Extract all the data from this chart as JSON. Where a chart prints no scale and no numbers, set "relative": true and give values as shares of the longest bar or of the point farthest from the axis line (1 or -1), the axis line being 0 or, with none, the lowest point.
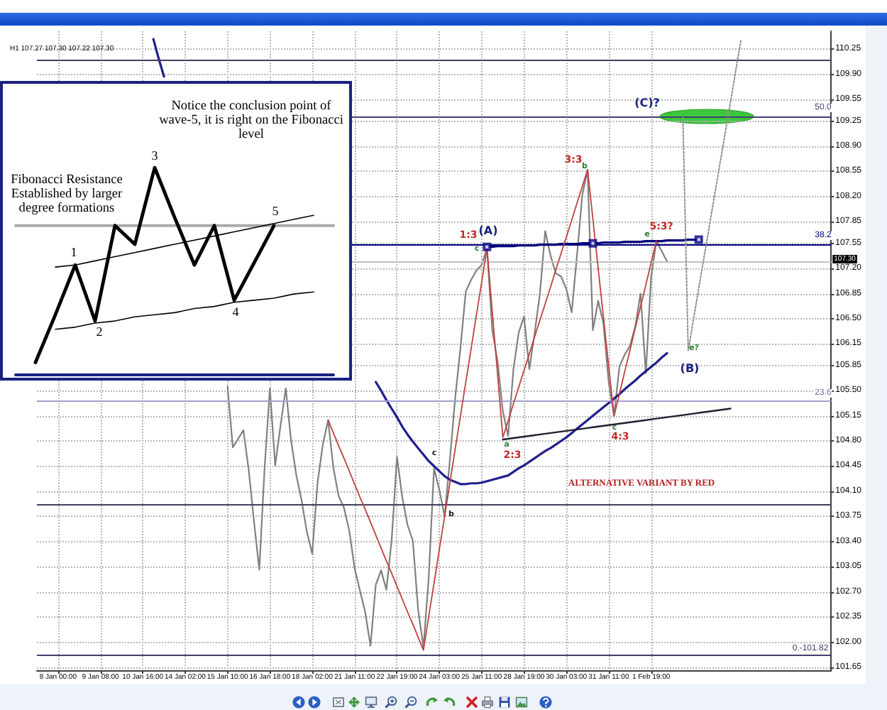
{
  "chart_data": [
    {
      "type": "line",
      "title": "H1 107.27 107.30 107.22 107.30",
      "categories": [
        null,
        null,
        null,
        null,
        "8 Jan 00:00",
        null,
        null,
        null,
        null,
        null,
        null,
        null,
        "9 Jan 08:00",
        null,
        null,
        null,
        null,
        null,
        null,
        null,
        "10 Jan 16:00",
        null,
        null,
        null,
        null,
        null,
        null,
        null,
        "14 Jan 02:00",
        null,
        null,
        null,
        null,
        null,
        null,
        null,
        "15 Jan 10:00",
        null,
        null,
        null,
        null,
        null,
        null,
        null,
        "16 Jan 18:00",
        null,
        null,
        null,
        null,
        null,
        null,
        null,
        "18 Jan 02:00",
        null,
        null,
        null,
        null,
        null,
        null,
        null,
        "21 Jan 11:00",
        null,
        null,
        null,
        null,
        null,
        null,
        null,
        "22 Jan 19:00",
        null,
        null,
        null,
        null,
        null,
        null,
        null,
        "24 Jan 03:00",
        null,
        null,
        null,
        null,
        null,
        null,
        null,
        "25 Jan 11:00",
        null,
        null,
        null,
        null,
        null,
        null,
        null,
        "28 Jan 19:00",
        null,
        null,
        null,
        null,
        null,
        null,
        null,
        "30 Jan 03:00",
        null,
        null,
        null,
        null,
        null,
        null,
        null,
        "31 Jan 11:00",
        null,
        null,
        null,
        null,
        null,
        null,
        null,
        "1 Feb 19:00",
        null,
        null,
        null,
        null,
        null,
        null,
        null,
        null,
        null,
        null,
        null,
        null,
        null,
        null,
        null,
        null,
        null,
        null,
        null,
        null,
        null,
        null,
        null,
        null,
        null,
        null,
        null,
        null,
        null,
        null,
        null,
        null,
        null,
        null
      ],
      "ylim": [
        101.6,
        110.5
      ],
      "yticks": [
        110.25,
        {
          "value": 109.9,
          "label": "109.90"
        },
        109.55,
        109.25,
        {
          "value": 108.9,
          "label": "108.90"
        },
        108.55,
        {
          "value": 108.2,
          "label": "108.20"
        },
        107.85,
        107.55,
        {
          "value": 107.2,
          "label": "107.20"
        },
        106.85,
        {
          "value": 106.5,
          "label": "106.50"
        },
        106.15,
        105.85,
        {
          "value": 105.5,
          "label": "105.50"
        },
        105.15,
        {
          "value": 104.8,
          "label": "104.80"
        },
        104.45,
        {
          "value": 104.1,
          "label": "104.10"
        },
        103.75,
        {
          "value": 103.4,
          "label": "103.40"
        },
        103.05,
        {
          "value": 102.7,
          "label": "102.70"
        },
        102.35,
        {
          "value": 102.0,
          "label": "102.00"
        },
        101.65
      ],
      "grid": true,
      "marker": "none",
      "series": [
        {
          "color": "#808080",
          "values": [
            null,
            null,
            null,
            null,
            null,
            null,
            null,
            null,
            null,
            null,
            null,
            null,
            null,
            null,
            null,
            null,
            null,
            null,
            null,
            null,
            null,
            null,
            null,
            null,
            null,
            null,
            null,
            null,
            null,
            null,
            null,
            null,
            null,
            null,
            null,
            null,
            105.56,
            104.71,
            104.83,
            104.95,
            104.4,
            103.68,
            103.01,
            104.42,
            105.53,
            104.46,
            105.01,
            105.53,
            104.81,
            104.32,
            103.97,
            103.53,
            103.23,
            104.22,
            104.75,
            105.09,
            104.42,
            104.03,
            103.87,
            103.55,
            103.03,
            102.72,
            102.42,
            101.95,
            102.8,
            103.0,
            102.73,
            103.42,
            104.58,
            104.02,
            103.63,
            103.41,
            102.45,
            101.93,
            102.9,
            104.42,
            104.12,
            103.75,
            104.54,
            105.4,
            106.1,
            106.88,
            107.04,
            107.17,
            107.25,
            107.48,
            106.34,
            105.91,
            105.21,
            104.87,
            105.8,
            106.31,
            106.53,
            105.8,
            106.3,
            106.85,
            107.72,
            107.38,
            107.13,
            107.09,
            106.91,
            106.59,
            107.38,
            108.22,
            108.57,
            106.34,
            106.75,
            106.43,
            105.61,
            105.15,
            105.83,
            106.0,
            106.12,
            106.39,
            106.85,
            105.74,
            107.09,
            107.58,
            107.44,
            107.3,
            null,
            null,
            null,
            null,
            null,
            null,
            null,
            null,
            null,
            null,
            null,
            null,
            null,
            null,
            null,
            null,
            null,
            null,
            null,
            null,
            null,
            null,
            null,
            null,
            null,
            null,
            null,
            null,
            null,
            null,
            null
          ]
        },
        {
          "color": "#1f1f8f",
          "values": [
            null,
            null,
            null,
            null,
            null,
            null,
            null,
            null,
            null,
            null,
            null,
            null,
            null,
            null,
            null,
            null,
            null,
            null,
            null,
            null,
            null,
            null,
            110.39,
            110.12,
            109.87,
            null,
            null,
            null,
            null,
            null,
            null,
            null,
            null,
            null,
            null,
            null,
            null,
            null,
            null,
            null,
            null,
            null,
            null,
            null,
            null,
            null,
            null,
            null,
            null,
            null,
            null,
            null,
            null,
            null,
            null,
            null,
            null,
            null,
            null,
            null,
            null,
            null,
            null,
            null,
            105.62,
            105.5,
            105.37,
            105.25,
            105.13,
            105.0,
            104.89,
            104.79,
            104.7,
            104.61,
            104.52,
            104.45,
            104.38,
            104.31,
            104.26,
            104.23,
            104.2,
            104.2,
            104.21,
            104.21,
            104.22,
            104.24,
            104.26,
            104.28,
            104.3,
            104.32,
            104.37,
            104.42,
            104.46,
            104.51,
            104.56,
            104.61,
            104.66,
            104.7,
            104.75,
            104.8,
            104.85,
            104.91,
            104.97,
            105.03,
            105.09,
            105.15,
            105.21,
            105.27,
            105.33,
            105.39,
            105.45,
            105.52,
            105.58,
            105.64,
            105.71,
            105.77,
            105.83,
            105.89,
            105.96,
            106.02,
            null,
            null,
            null,
            null,
            null,
            null,
            null,
            null,
            null,
            null,
            null,
            null,
            null,
            null,
            null,
            null,
            null,
            null,
            null,
            null,
            null,
            null,
            null,
            null,
            null,
            null,
            null,
            null,
            null,
            null,
            null
          ]
        },
        {
          "color": "#202030",
          "values": [
            null,
            null,
            null,
            null,
            null,
            null,
            null,
            null,
            null,
            null,
            null,
            null,
            null,
            null,
            null,
            null,
            null,
            null,
            null,
            null,
            null,
            null,
            null,
            null,
            null,
            null,
            null,
            null,
            null,
            null,
            null,
            null,
            null,
            null,
            null,
            null,
            null,
            null,
            null,
            null,
            null,
            null,
            null,
            null,
            null,
            null,
            null,
            null,
            null,
            null,
            null,
            null,
            null,
            null,
            null,
            null,
            null,
            null,
            null,
            null,
            null,
            null,
            null,
            null,
            null,
            null,
            null,
            null,
            null,
            null,
            null,
            null,
            null,
            null,
            null,
            null,
            null,
            null,
            null,
            null,
            null,
            null,
            null,
            null,
            null,
            null,
            null,
            null,
            104.82,
            104.83,
            104.84,
            104.85,
            104.86,
            104.87,
            104.88,
            104.89,
            104.9,
            104.91,
            104.92,
            104.93,
            104.94,
            104.95,
            104.96,
            104.97,
            104.98,
            104.99,
            105.0,
            105.01,
            105.02,
            105.03,
            105.04,
            105.05,
            105.06,
            105.07,
            105.08,
            105.09,
            105.1,
            105.11,
            105.12,
            105.13,
            105.14,
            105.15,
            105.16,
            105.17,
            105.18,
            105.19,
            105.2,
            105.21,
            105.22,
            105.23,
            105.24,
            105.25,
            null,
            null,
            null,
            null,
            null,
            null,
            null,
            null,
            null,
            null,
            null,
            null,
            null,
            null,
            null,
            null,
            null,
            null,
            null
          ]
        },
        {
          "color": "#000080",
          "values": [
            null,
            null,
            null,
            null,
            null,
            null,
            null,
            null,
            null,
            null,
            null,
            null,
            null,
            null,
            null,
            null,
            null,
            null,
            null,
            null,
            null,
            null,
            null,
            null,
            null,
            null,
            null,
            null,
            null,
            null,
            null,
            null,
            null,
            null,
            null,
            null,
            null,
            null,
            null,
            null,
            null,
            null,
            null,
            null,
            null,
            null,
            null,
            null,
            null,
            null,
            null,
            null,
            null,
            null,
            null,
            null,
            null,
            null,
            null,
            null,
            null,
            null,
            null,
            null,
            null,
            null,
            null,
            null,
            null,
            null,
            null,
            null,
            null,
            null,
            null,
            null,
            null,
            null,
            null,
            null,
            null,
            null,
            null,
            null,
            null,
            107.5,
            107.5,
            107.51,
            107.51,
            107.51,
            107.51,
            107.52,
            107.52,
            107.52,
            107.52,
            107.53,
            107.53,
            107.53,
            107.53,
            107.54,
            107.54,
            107.54,
            107.54,
            107.55,
            107.55,
            107.55,
            107.55,
            107.56,
            107.56,
            107.56,
            107.56,
            107.57,
            107.57,
            107.57,
            107.57,
            107.58,
            107.58,
            107.58,
            107.58,
            107.59,
            107.59,
            107.59,
            107.59,
            107.6,
            107.6,
            107.6,
            null,
            null,
            null,
            null,
            null,
            null,
            null,
            null,
            null,
            null,
            null,
            null,
            null,
            null,
            null,
            null,
            null,
            null,
            null,
            null,
            null,
            null,
            null,
            null,
            null
          ]
        },
        {
          "color": "#c04040",
          "values": [
            null,
            null,
            null,
            null,
            null,
            null,
            null,
            null,
            null,
            null,
            null,
            null,
            null,
            null,
            null,
            null,
            null,
            null,
            null,
            null,
            null,
            null,
            null,
            null,
            null,
            null,
            null,
            null,
            null,
            null,
            null,
            null,
            null,
            null,
            null,
            null,
            null,
            null,
            null,
            null,
            null,
            null,
            null,
            null,
            null,
            null,
            null,
            null,
            null,
            null,
            null,
            null,
            null,
            null,
            null,
            105.09,
            104.91,
            104.73,
            104.56,
            104.38,
            104.2,
            104.02,
            103.85,
            103.67,
            103.49,
            103.31,
            103.13,
            102.96,
            102.78,
            102.6,
            102.42,
            102.25,
            102.07,
            101.89,
            102.36,
            102.82,
            103.29,
            103.75,
            104.22,
            104.69,
            105.15,
            105.62,
            106.08,
            106.55,
            107.01,
            107.48,
            106.6,
            105.73,
            104.85,
            105.08,
            105.32,
            105.55,
            105.78,
            106.01,
            106.25,
            106.48,
            106.71,
            106.94,
            107.18,
            107.41,
            107.64,
            107.87,
            108.11,
            108.34,
            108.57,
            107.89,
            107.2,
            106.52,
            105.83,
            105.15,
            105.45,
            105.76,
            106.06,
            106.37,
            106.67,
            106.97,
            107.28,
            107.58,
            null,
            null,
            null,
            null,
            null,
            null,
            null,
            null,
            null,
            null,
            null,
            null,
            null,
            null,
            null,
            null,
            null,
            null,
            null,
            null,
            null,
            null,
            null,
            null,
            null,
            null,
            null,
            null,
            null,
            null,
            null,
            null,
            null
          ]
        },
        {
          "color": "#909090",
          "line_style": "dotted",
          "values": [
            null,
            null,
            null,
            null,
            null,
            null,
            null,
            null,
            null,
            null,
            null,
            null,
            null,
            null,
            null,
            null,
            null,
            null,
            null,
            null,
            null,
            null,
            null,
            null,
            null,
            null,
            null,
            null,
            null,
            null,
            null,
            null,
            null,
            null,
            null,
            null,
            null,
            null,
            null,
            null,
            null,
            null,
            null,
            null,
            null,
            null,
            null,
            null,
            null,
            null,
            null,
            null,
            null,
            null,
            null,
            null,
            null,
            null,
            null,
            null,
            null,
            null,
            null,
            null,
            null,
            null,
            null,
            null,
            null,
            null,
            null,
            null,
            null,
            null,
            null,
            null,
            null,
            null,
            null,
            null,
            null,
            null,
            null,
            null,
            null,
            null,
            null,
            null,
            null,
            null,
            null,
            null,
            null,
            null,
            null,
            null,
            null,
            null,
            null,
            null,
            null,
            null,
            null,
            null,
            null,
            null,
            null,
            null,
            null,
            null,
            null,
            null,
            null,
            null,
            null,
            null,
            null,
            null,
            null,
            null,
            null,
            null,
            109.3,
            106.06,
            106.49,
            106.93,
            107.36,
            107.79,
            108.23,
            108.66,
            109.09,
            109.52,
            109.96,
            110.39,
            null,
            null,
            null,
            null,
            null,
            null,
            null,
            null,
            null,
            null,
            null,
            null,
            null,
            null,
            null,
            null,
            null
          ]
        },
        {
          "type": "scatter",
          "marker": "square",
          "color": "#000080",
          "values": [
            null,
            null,
            null,
            null,
            null,
            null,
            null,
            null,
            null,
            null,
            null,
            null,
            null,
            null,
            null,
            null,
            null,
            null,
            null,
            null,
            null,
            null,
            null,
            null,
            null,
            null,
            null,
            null,
            null,
            null,
            null,
            null,
            null,
            null,
            null,
            null,
            null,
            null,
            null,
            null,
            null,
            null,
            null,
            null,
            null,
            null,
            null,
            null,
            null,
            null,
            null,
            null,
            null,
            null,
            null,
            null,
            null,
            null,
            null,
            null,
            null,
            null,
            null,
            null,
            null,
            null,
            null,
            null,
            null,
            null,
            null,
            null,
            null,
            null,
            null,
            null,
            null,
            null,
            null,
            null,
            null,
            null,
            null,
            null,
            null,
            107.5,
            null,
            null,
            null,
            null,
            null,
            null,
            null,
            null,
            null,
            null,
            null,
            null,
            null,
            null,
            null,
            null,
            null,
            null,
            null,
            107.55,
            null,
            null,
            null,
            null,
            null,
            null,
            null,
            null,
            null,
            null,
            null,
            null,
            null,
            null,
            null,
            null,
            null,
            null,
            null,
            107.6,
            null,
            null,
            null,
            null,
            null,
            null,
            null,
            null,
            null,
            null,
            null,
            null,
            null,
            null,
            null,
            null,
            null,
            null,
            null,
            null,
            null,
            null,
            null,
            null,
            null
          ]
        }
      ],
      "ref_lines": [
        {
          "axis": "y",
          "value": 110.1,
          "color": "#404060"
        },
        {
          "axis": "y",
          "value": 109.31,
          "color": "#404070"
        },
        {
          "axis": "y",
          "value": 107.54,
          "color": "#000080"
        },
        {
          "axis": "y",
          "value": 107.3,
          "label": "107.30",
          "color": "#c0c0c0"
        },
        {
          "axis": "y",
          "value": 105.36,
          "color": "#a0a0d0"
        },
        {
          "axis": "y",
          "value": 103.92,
          "color": "#404060"
        },
        {
          "axis": "y",
          "value": 101.82,
          "color": "#404070"
        }
      ],
      "annotations": [
        "ALTERNATIVE VARIANT BY RED",
        "1:3",
        "(A)",
        "2:3",
        "3:3",
        "4:3",
        "5:3?",
        "(C)?",
        "(B)",
        "c",
        "b",
        "c",
        "a",
        "b",
        "c",
        "e",
        "e?",
        "50.0",
        "38.2",
        "23.6",
        "0.-101.82"
      ]
    },
    {
      "type": "line",
      "relative": true,
      "categories": [
        null,
        null,
        null,
        null,
        null,
        null,
        null,
        null,
        null,
        null,
        null,
        null,
        null,
        null,
        null,
        null,
        null
      ],
      "series": [
        {
          "color": "#aaaaaa",
          "values": [
            0.72,
            0.72,
            0.72,
            0.72,
            0.72,
            0.72,
            0.72,
            0.72,
            0.72,
            0.72,
            0.72,
            0.72,
            0.72,
            0.72,
            0.72,
            0.72,
            0.72
          ]
        },
        {
          "color": "#000000",
          "values": [
            null,
            0.06,
            0.29,
            0.53,
            0.26,
            0.72,
            0.63,
            1,
            0.76,
            0.53,
            0.72,
            0.36,
            0.54,
            0.72,
            null,
            null,
            null
          ]
        },
        {
          "color": "#000000",
          "values": [
            null,
            null,
            0.52,
            0.53,
            0.55,
            0.57,
            0.59,
            0.61,
            0.63,
            0.65,
            0.67,
            0.69,
            0.71,
            0.73,
            0.75,
            0.77,
            null
          ]
        },
        {
          "color": "#000000",
          "values": [
            null,
            null,
            0.22,
            0.23,
            0.25,
            0.26,
            0.28,
            0.29,
            0.3,
            0.32,
            0.33,
            0.35,
            0.36,
            0.37,
            0.39,
            0.4,
            null
          ]
        }
      ],
      "annotations": [
        "Notice the conclusion point of wave-5, it is right on the Fibonacci level",
        "Fibonacci Resistance Established by larger degree formations",
        "1",
        "2",
        "3",
        "4",
        "5"
      ]
    }
  ]
}
